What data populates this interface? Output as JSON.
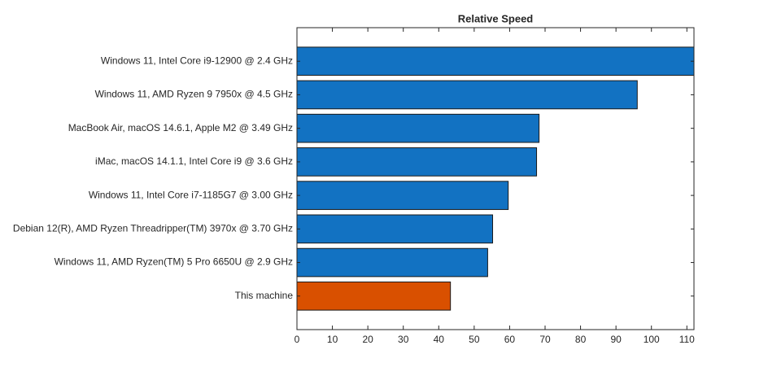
{
  "chart_data": {
    "type": "barh",
    "title": "Relative Speed",
    "categories": [
      "Windows 11, Intel Core i9-12900 @ 2.4 GHz",
      "Windows 11, AMD Ryzen 9 7950x @ 4.5 GHz",
      "MacBook Air, macOS 14.6.1, Apple M2 @ 3.49 GHz",
      "iMac, macOS 14.1.1, Intel Core i9 @ 3.6 GHz",
      "Windows 11, Intel Core i7-1185G7 @ 3.00 GHz",
      "Debian 12(R), AMD Ryzen Threadripper(TM) 3970x @ 3.70 GHz",
      "Windows 11, AMD Ryzen(TM) 5 Pro 6650U @ 2.9 GHz",
      "This machine"
    ],
    "values": [
      112,
      96,
      68.3,
      67.6,
      59.6,
      55.2,
      53.8,
      43.3
    ],
    "colors": [
      "#1272c2",
      "#1272c2",
      "#1272c2",
      "#1272c2",
      "#1272c2",
      "#1272c2",
      "#1272c2",
      "#d95000"
    ],
    "xlim": [
      0,
      112
    ],
    "xticks": [
      0,
      10,
      20,
      30,
      40,
      50,
      60,
      70,
      80,
      90,
      100,
      110
    ],
    "grid": false
  }
}
